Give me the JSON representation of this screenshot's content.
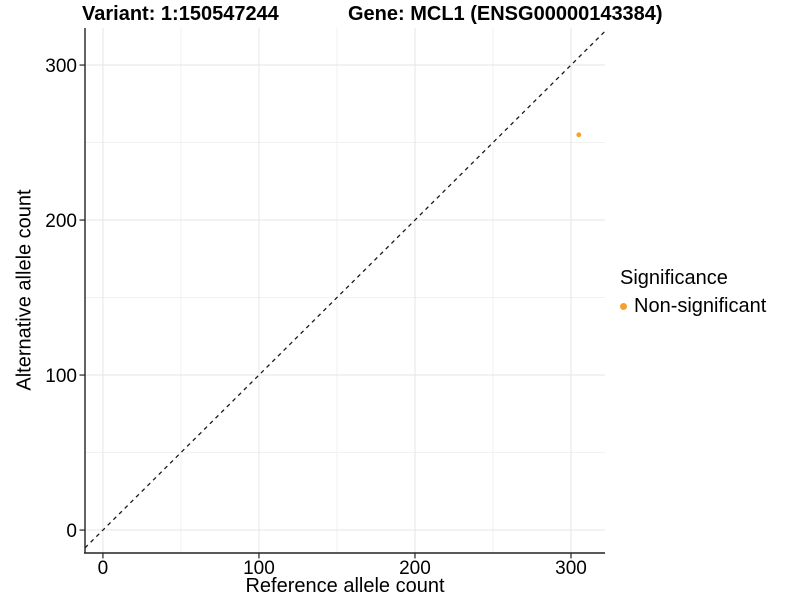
{
  "chart_data": {
    "type": "scatter",
    "titles": {
      "left": "Variant: 1:150547244",
      "right": "Gene: MCL1 (ENSG00000143384)"
    },
    "xlabel": "Reference allele count",
    "ylabel": "Alternative allele count",
    "x_ticks": [
      0,
      100,
      200,
      300
    ],
    "y_ticks": [
      0,
      100,
      200,
      300
    ],
    "x_minor_ticks": [
      50,
      150,
      250
    ],
    "y_minor_ticks": [
      50,
      150,
      250
    ],
    "xlim": [
      -11.5,
      321.8
    ],
    "ylim": [
      -14.8,
      323.9
    ],
    "grid": true,
    "series": [
      {
        "name": "Non-significant",
        "color": "#F9A02B",
        "points": [
          {
            "x": 305,
            "y": 255
          }
        ]
      }
    ],
    "reference_line": {
      "style": "dashed",
      "slope": 1,
      "intercept": 0,
      "color": "#1A1A1A"
    },
    "legend": {
      "title": "Significance",
      "position": "right",
      "items": [
        {
          "label": "Non-significant",
          "color": "#F9A02B"
        }
      ]
    }
  },
  "colors": {
    "background": "#FFFFFF",
    "axis_line": "#222222",
    "grid_major": "#E6E6E6",
    "grid_minor": "#F2F2F2",
    "text": "#000000"
  }
}
